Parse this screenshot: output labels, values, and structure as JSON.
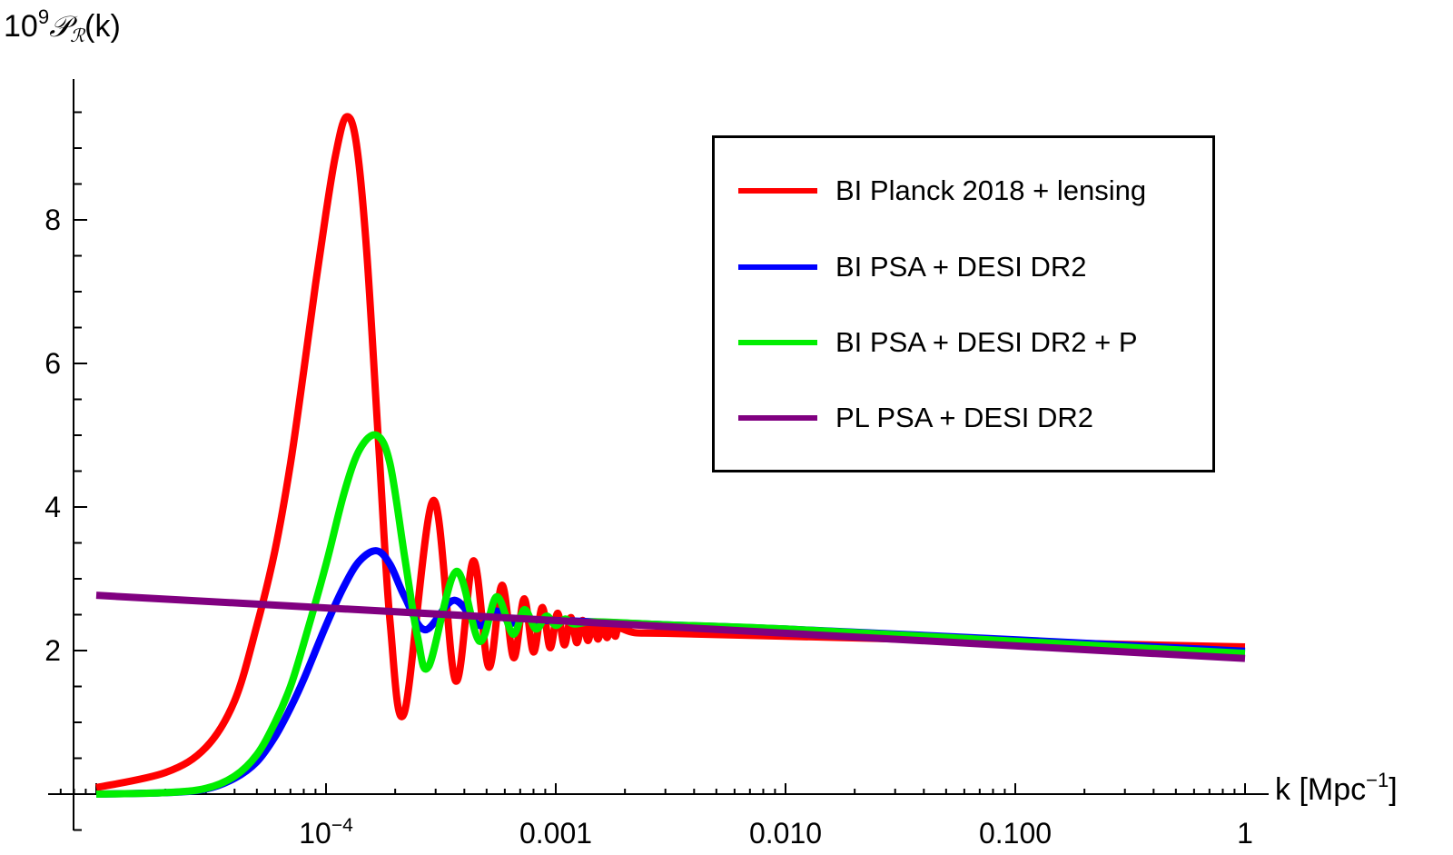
{
  "chart_data": {
    "type": "line",
    "title": "",
    "ylabel": {
      "base": "10",
      "exp": "9",
      "symbol": "𝒫",
      "sub": "ℛ",
      "arg": "(k)"
    },
    "xlabel": {
      "text": "k [Mpc",
      "exp": "−1",
      "close": "]"
    },
    "xscale": "log",
    "xlim": [
      6e-06,
      1.5
    ],
    "ylim": [
      -0.5,
      10
    ],
    "x_ticks": [
      {
        "value": 0.0001,
        "label_base": "10",
        "label_exp": "−4"
      },
      {
        "value": 0.001,
        "label": "0.001"
      },
      {
        "value": 0.01,
        "label": "0.010"
      },
      {
        "value": 0.1,
        "label": "0.100"
      },
      {
        "value": 1,
        "label": "1"
      }
    ],
    "y_ticks": [
      {
        "value": 2,
        "label": "2"
      },
      {
        "value": 4,
        "label": "4"
      },
      {
        "value": 6,
        "label": "6"
      },
      {
        "value": 8,
        "label": "8"
      }
    ],
    "y_minor_step": 0.5,
    "grid": false,
    "legend_position": "top-right",
    "series": [
      {
        "name": "BI Planck 2018 + lensing",
        "color": "#ff0000",
        "points": [
          [
            1e-05,
            0.09
          ],
          [
            2e-05,
            0.3
          ],
          [
            3e-05,
            0.65
          ],
          [
            4e-05,
            1.3
          ],
          [
            5e-05,
            2.35
          ],
          [
            6e-05,
            3.4
          ],
          [
            7e-05,
            4.6
          ],
          [
            8e-05,
            5.9
          ],
          [
            9e-05,
            7.1
          ],
          [
            0.0001,
            8.1
          ],
          [
            0.00011,
            8.9
          ],
          [
            0.000122,
            9.43
          ],
          [
            0.000135,
            9.1
          ],
          [
            0.00015,
            7.6
          ],
          [
            0.00017,
            4.8
          ],
          [
            0.00019,
            2.4
          ],
          [
            0.000219,
            1.13
          ],
          [
            0.000293,
            4.09
          ],
          [
            0.000366,
            1.58
          ],
          [
            0.000438,
            3.25
          ],
          [
            0.000511,
            1.77
          ],
          [
            0.000583,
            2.91
          ],
          [
            0.000656,
            1.9
          ],
          [
            0.000728,
            2.72
          ],
          [
            0.0008,
            1.98
          ],
          [
            0.000873,
            2.6
          ],
          [
            0.000945,
            2.04
          ],
          [
            0.001018,
            2.52
          ],
          [
            0.00109,
            2.08
          ],
          [
            0.001163,
            2.46
          ],
          [
            0.001235,
            2.11
          ],
          [
            0.001308,
            2.42
          ],
          [
            0.00138,
            2.14
          ],
          [
            0.001453,
            2.39
          ],
          [
            0.001525,
            2.16
          ],
          [
            0.001598,
            2.36
          ],
          [
            0.00167,
            2.18
          ],
          [
            0.001743,
            2.33
          ],
          [
            0.001815,
            2.2
          ],
          [
            0.001888,
            2.31
          ],
          [
            0.0022,
            2.25
          ],
          [
            0.003,
            2.24
          ],
          [
            0.01,
            2.2
          ],
          [
            0.1,
            2.12
          ],
          [
            1,
            2.05
          ]
        ]
      },
      {
        "name": "BI PSA + DESI DR2",
        "color": "#0000ff",
        "points": [
          [
            1e-05,
            0
          ],
          [
            2e-05,
            0.02
          ],
          [
            3e-05,
            0.07
          ],
          [
            4e-05,
            0.22
          ],
          [
            5e-05,
            0.45
          ],
          [
            6e-05,
            0.8
          ],
          [
            7e-05,
            1.2
          ],
          [
            8e-05,
            1.6
          ],
          [
            0.0001,
            2.35
          ],
          [
            0.00012,
            2.9
          ],
          [
            0.00014,
            3.25
          ],
          [
            0.000166,
            3.39
          ],
          [
            0.00019,
            3.2
          ],
          [
            0.00022,
            2.75
          ],
          [
            0.00027,
            2.29
          ],
          [
            0.00036,
            2.7
          ],
          [
            0.000466,
            2.35
          ],
          [
            0.00055,
            2.55
          ],
          [
            0.00064,
            2.38
          ],
          [
            0.00073,
            2.5
          ],
          [
            0.00082,
            2.4
          ],
          [
            0.001,
            2.42
          ],
          [
            0.003,
            2.36
          ],
          [
            0.01,
            2.3
          ],
          [
            0.1,
            2.15
          ],
          [
            1,
            1.99
          ]
        ]
      },
      {
        "name": "BI PSA + DESI DR2 + P",
        "color": "#00ee00",
        "points": [
          [
            1e-05,
            0
          ],
          [
            2e-05,
            0.02
          ],
          [
            3e-05,
            0.08
          ],
          [
            4e-05,
            0.25
          ],
          [
            5e-05,
            0.55
          ],
          [
            6e-05,
            1.0
          ],
          [
            7e-05,
            1.5
          ],
          [
            8e-05,
            2.1
          ],
          [
            0.0001,
            3.2
          ],
          [
            0.00012,
            4.2
          ],
          [
            0.00014,
            4.8
          ],
          [
            0.000166,
            5.0
          ],
          [
            0.00019,
            4.6
          ],
          [
            0.00022,
            3.3
          ],
          [
            0.00025,
            2.2
          ],
          [
            0.00028,
            1.78
          ],
          [
            0.000368,
            3.1
          ],
          [
            0.000465,
            2.13
          ],
          [
            0.000553,
            2.75
          ],
          [
            0.00065,
            2.23
          ],
          [
            0.00073,
            2.57
          ],
          [
            0.00082,
            2.3
          ],
          [
            0.00091,
            2.48
          ],
          [
            0.001,
            2.35
          ],
          [
            0.0011,
            2.44
          ],
          [
            0.0012,
            2.37
          ],
          [
            0.0015,
            2.4
          ],
          [
            0.003,
            2.36
          ],
          [
            0.01,
            2.3
          ],
          [
            0.1,
            2.13
          ],
          [
            1,
            1.96
          ]
        ]
      },
      {
        "name": "PL PSA + DESI DR2",
        "color": "#800080",
        "points": [
          [
            1e-05,
            2.77
          ],
          [
            1,
            1.89
          ]
        ]
      }
    ]
  }
}
